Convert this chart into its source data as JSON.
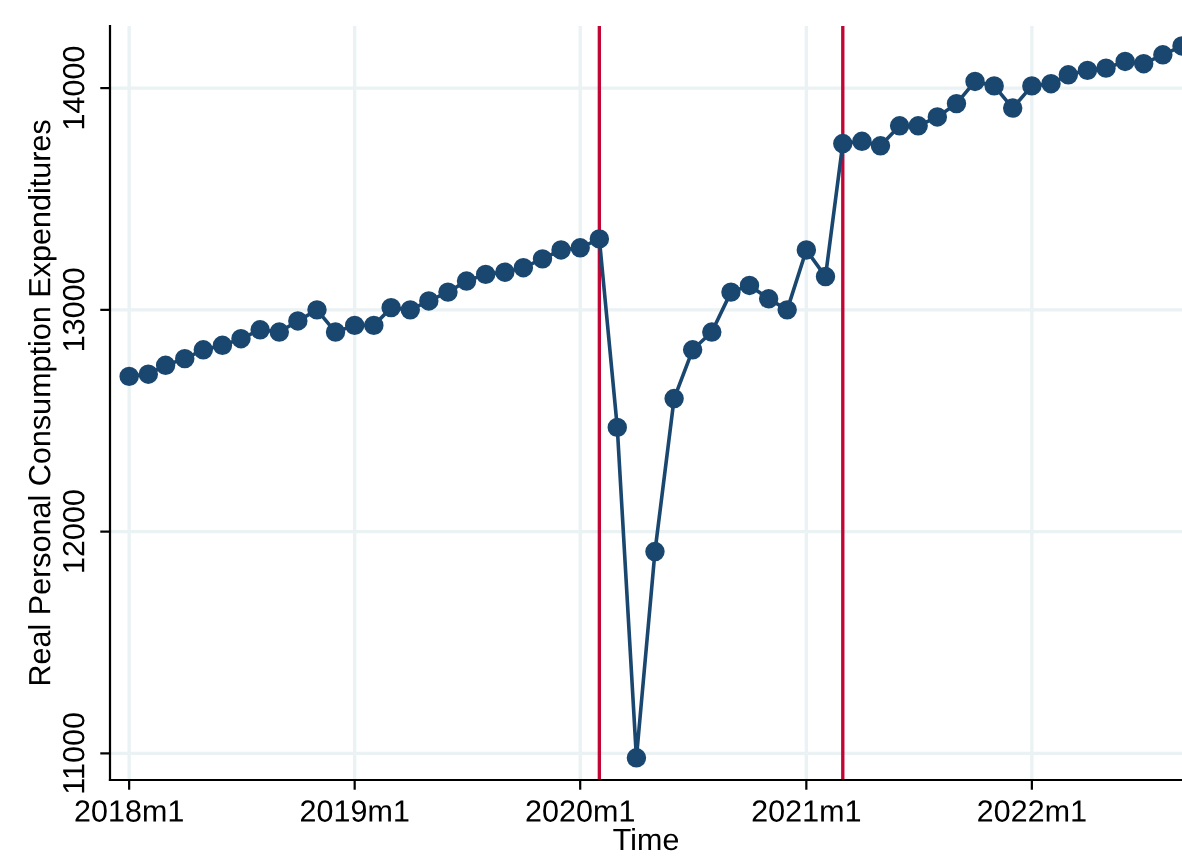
{
  "chart_data": {
    "type": "line",
    "xlabel": "Time",
    "ylabel": "Real Personal Consumption Expenditures",
    "x": [
      "2018-01",
      "2018-02",
      "2018-03",
      "2018-04",
      "2018-05",
      "2018-06",
      "2018-07",
      "2018-08",
      "2018-09",
      "2018-10",
      "2018-11",
      "2018-12",
      "2019-01",
      "2019-02",
      "2019-03",
      "2019-04",
      "2019-05",
      "2019-06",
      "2019-07",
      "2019-08",
      "2019-09",
      "2019-10",
      "2019-11",
      "2019-12",
      "2020-01",
      "2020-02",
      "2020-03",
      "2020-04",
      "2020-05",
      "2020-06",
      "2020-07",
      "2020-08",
      "2020-09",
      "2020-10",
      "2020-11",
      "2020-12",
      "2021-01",
      "2021-02",
      "2021-03",
      "2021-04",
      "2021-05",
      "2021-06",
      "2021-07",
      "2021-08",
      "2021-09",
      "2021-10",
      "2021-11",
      "2021-12",
      "2022-01",
      "2022-02",
      "2022-03",
      "2022-04",
      "2022-05",
      "2022-06",
      "2022-07",
      "2022-08",
      "2022-09"
    ],
    "series": [
      {
        "color": "#1a476f",
        "values": [
          12700,
          12710,
          12750,
          12780,
          12820,
          12840,
          12870,
          12910,
          12900,
          12950,
          13000,
          12900,
          12930,
          12930,
          13010,
          13000,
          13040,
          13080,
          13130,
          13160,
          13170,
          13190,
          13230,
          13270,
          13280,
          13320,
          12470,
          10980,
          11910,
          12600,
          12820,
          12900,
          13080,
          13110,
          13050,
          13000,
          13270,
          13150,
          13750,
          13760,
          13740,
          13830,
          13830,
          13870,
          13930,
          14030,
          14010,
          13910,
          14010,
          14020,
          14060,
          14080,
          14090,
          14120,
          14110,
          14150,
          14190
        ]
      }
    ],
    "marker": "circle",
    "line_style": "solid",
    "grid": true,
    "legend": false,
    "xlim": [
      "2017-12",
      "2022-09"
    ],
    "xticks": [
      {
        "value": "2018-01",
        "label": "2018m1"
      },
      {
        "value": "2019-01",
        "label": "2019m1"
      },
      {
        "value": "2020-01",
        "label": "2020m1"
      },
      {
        "value": "2021-01",
        "label": "2021m1"
      },
      {
        "value": "2022-01",
        "label": "2022m1"
      }
    ],
    "ylim": [
      10880,
      14280
    ],
    "yticks": [
      11000,
      12000,
      13000,
      14000
    ],
    "ref_lines": [
      {
        "axis": "x",
        "value": "2020-02",
        "color": "#c10534"
      },
      {
        "axis": "x",
        "value": "2021-03",
        "color": "#c10534"
      }
    ]
  }
}
